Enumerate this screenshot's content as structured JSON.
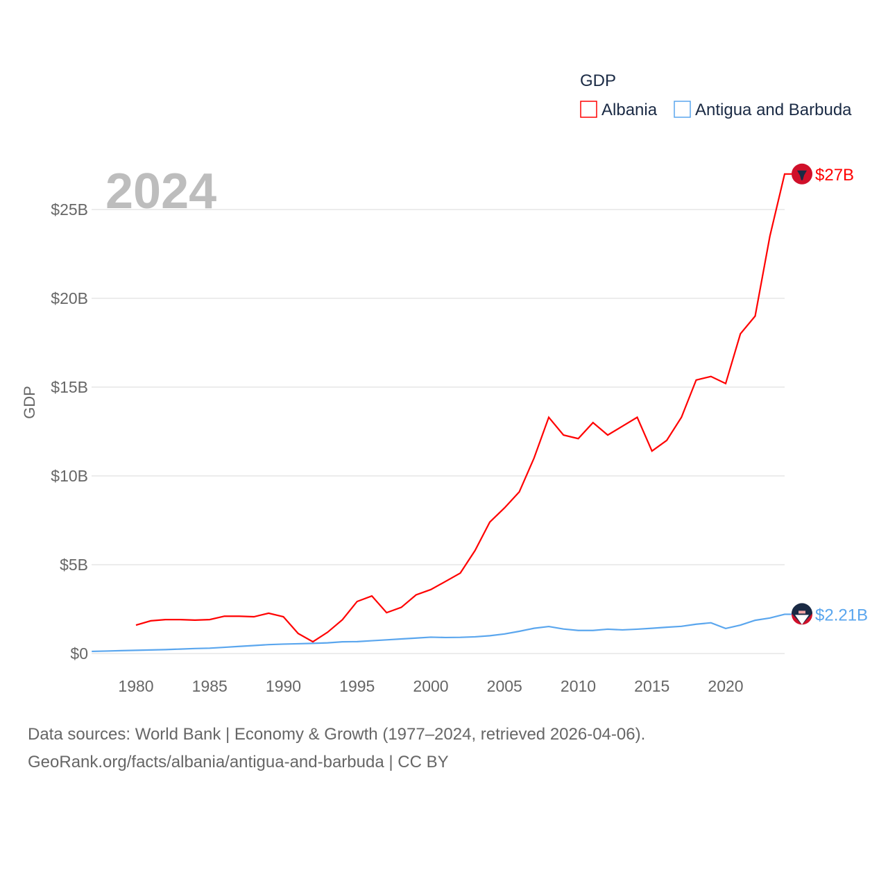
{
  "chart_data": {
    "type": "line",
    "title": "GDP",
    "year_label": "2024",
    "ylabel": "GDP",
    "xlabel": "",
    "xlim": [
      1977,
      2024
    ],
    "ylim": [
      0,
      27.5
    ],
    "x_ticks": [
      1980,
      1985,
      1990,
      1995,
      2000,
      2005,
      2010,
      2015,
      2020
    ],
    "x_tick_labels": [
      "1980",
      "1985",
      "1990",
      "1995",
      "2000",
      "2005",
      "2010",
      "2015",
      "2020"
    ],
    "y_ticks": [
      0,
      5,
      10,
      15,
      20,
      25
    ],
    "y_tick_labels": [
      "$0",
      "$5B",
      "$10B",
      "$15B",
      "$20B",
      "$25B"
    ],
    "grid": true,
    "legend_position": "top-right",
    "series": [
      {
        "name": "Albania",
        "color": "#ff0000",
        "end_label": "$27B",
        "start_year": 1980,
        "values": [
          1.6,
          1.84,
          1.91,
          1.91,
          1.88,
          1.91,
          2.1,
          2.1,
          2.07,
          2.27,
          2.07,
          1.13,
          0.66,
          1.2,
          1.9,
          2.93,
          3.24,
          2.3,
          2.6,
          3.3,
          3.6,
          4.06,
          4.53,
          5.8,
          7.4,
          8.2,
          9.1,
          11.0,
          13.3,
          12.3,
          12.1,
          13.0,
          12.3,
          12.8,
          13.3,
          11.4,
          12.0,
          13.3,
          15.4,
          15.6,
          15.2,
          18.0,
          19.0,
          23.5,
          27.0
        ]
      },
      {
        "name": "Antigua and Barbuda",
        "color": "#5aa6ee",
        "end_label": "$2.21B",
        "start_year": 1977,
        "values": [
          0.12,
          0.14,
          0.16,
          0.18,
          0.2,
          0.22,
          0.25,
          0.28,
          0.3,
          0.35,
          0.4,
          0.45,
          0.5,
          0.53,
          0.55,
          0.57,
          0.6,
          0.66,
          0.67,
          0.72,
          0.77,
          0.82,
          0.87,
          0.92,
          0.9,
          0.91,
          0.94,
          1.0,
          1.1,
          1.25,
          1.42,
          1.52,
          1.38,
          1.3,
          1.3,
          1.37,
          1.33,
          1.37,
          1.42,
          1.48,
          1.53,
          1.65,
          1.73,
          1.41,
          1.6,
          1.87,
          2.0,
          2.21
        ]
      }
    ]
  },
  "source": {
    "line1": "Data sources: World Bank | Economy & Growth (1977–2024, retrieved 2026-04-06).",
    "line2": "GeoRank.org/facts/albania/antigua-and-barbuda | CC BY"
  }
}
